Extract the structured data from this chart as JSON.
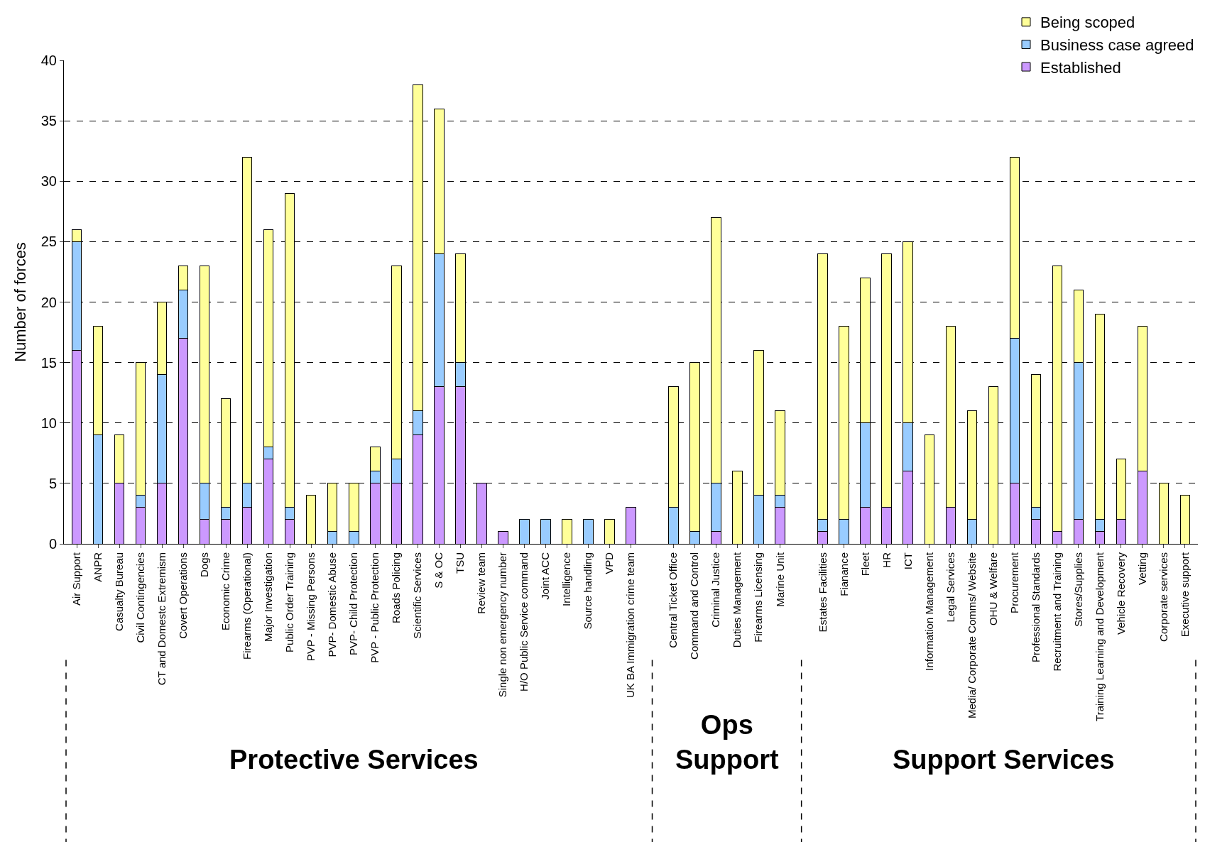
{
  "chart_data": {
    "type": "bar",
    "stacked": true,
    "ylabel": "Number of forces",
    "ylim": [
      0,
      40
    ],
    "yticks": [
      0,
      5,
      10,
      15,
      20,
      25,
      30,
      35,
      40
    ],
    "grid": "y",
    "legend": "top right",
    "categories": [
      "Air Support",
      "ANPR",
      "Casualty Bureau",
      "Civil Contingencies",
      "CT and Domestc Extremism",
      "Covert Operations",
      "Dogs",
      "Economic Crime",
      "Firearms (Operational)",
      "Major Investigation",
      "Public Order Training",
      "PVP - Missing Persons",
      "PVP- Domestic Abuse",
      "PVP- Child Protection",
      "PVP - Public Protection",
      "Roads Policing",
      "Scientific Services",
      "S & OC",
      "TSU",
      "Review team",
      "Single non emergency number",
      "H/O Public Service command",
      "Joint ACC",
      "Intelligence",
      "Source handling",
      "VPD",
      "UK BA Immigration crime team",
      null,
      "Central Ticket Office",
      "Command and Control",
      "Criminal Justice",
      "Duties Management",
      "Firearms Licensing",
      "Marine Unit",
      null,
      "Estates Facilities",
      "Fianance",
      "Fleet",
      "HR",
      "ICT",
      "Information Management",
      "Legal Services",
      "Media/ Corporate Comms/ Website",
      "OHU & Welfare",
      "Procurement",
      "Professional Standards",
      "Recruitment and Training",
      "Stores/Supplies",
      "Training Learning and Development",
      "Vehicle Recovery",
      "Vetting",
      "Corporate services",
      "Executive support"
    ],
    "series": [
      {
        "name": "Established",
        "color": "#cc99ff",
        "values": [
          16,
          0,
          5,
          3,
          5,
          17,
          2,
          2,
          3,
          7,
          2,
          0,
          0,
          0,
          5,
          5,
          9,
          13,
          13,
          5,
          1,
          0,
          0,
          0,
          0,
          0,
          3,
          null,
          0,
          0,
          1,
          0,
          0,
          3,
          null,
          1,
          0,
          3,
          3,
          6,
          0,
          3,
          0,
          0,
          5,
          2,
          1,
          2,
          1,
          2,
          6,
          0,
          0
        ]
      },
      {
        "name": "Business case agreed",
        "color": "#99ccff",
        "values": [
          9,
          9,
          0,
          1,
          9,
          4,
          3,
          1,
          2,
          1,
          1,
          0,
          1,
          1,
          1,
          2,
          2,
          11,
          2,
          0,
          0,
          2,
          2,
          0,
          2,
          0,
          0,
          null,
          3,
          1,
          4,
          0,
          4,
          1,
          null,
          1,
          2,
          7,
          0,
          4,
          0,
          0,
          2,
          0,
          12,
          1,
          0,
          13,
          1,
          0,
          0,
          0,
          0
        ]
      },
      {
        "name": "Being scoped",
        "color": "#ffff99",
        "values": [
          1,
          9,
          4,
          11,
          6,
          2,
          18,
          9,
          27,
          18,
          26,
          4,
          4,
          4,
          2,
          16,
          27,
          12,
          9,
          0,
          0,
          0,
          0,
          2,
          0,
          2,
          0,
          null,
          10,
          14,
          22,
          6,
          12,
          7,
          null,
          22,
          16,
          12,
          21,
          15,
          9,
          15,
          9,
          13,
          15,
          11,
          22,
          6,
          17,
          5,
          12,
          5,
          4
        ]
      }
    ],
    "annotations": [
      "Protective Services",
      "Ops Support",
      "Support Services"
    ]
  }
}
